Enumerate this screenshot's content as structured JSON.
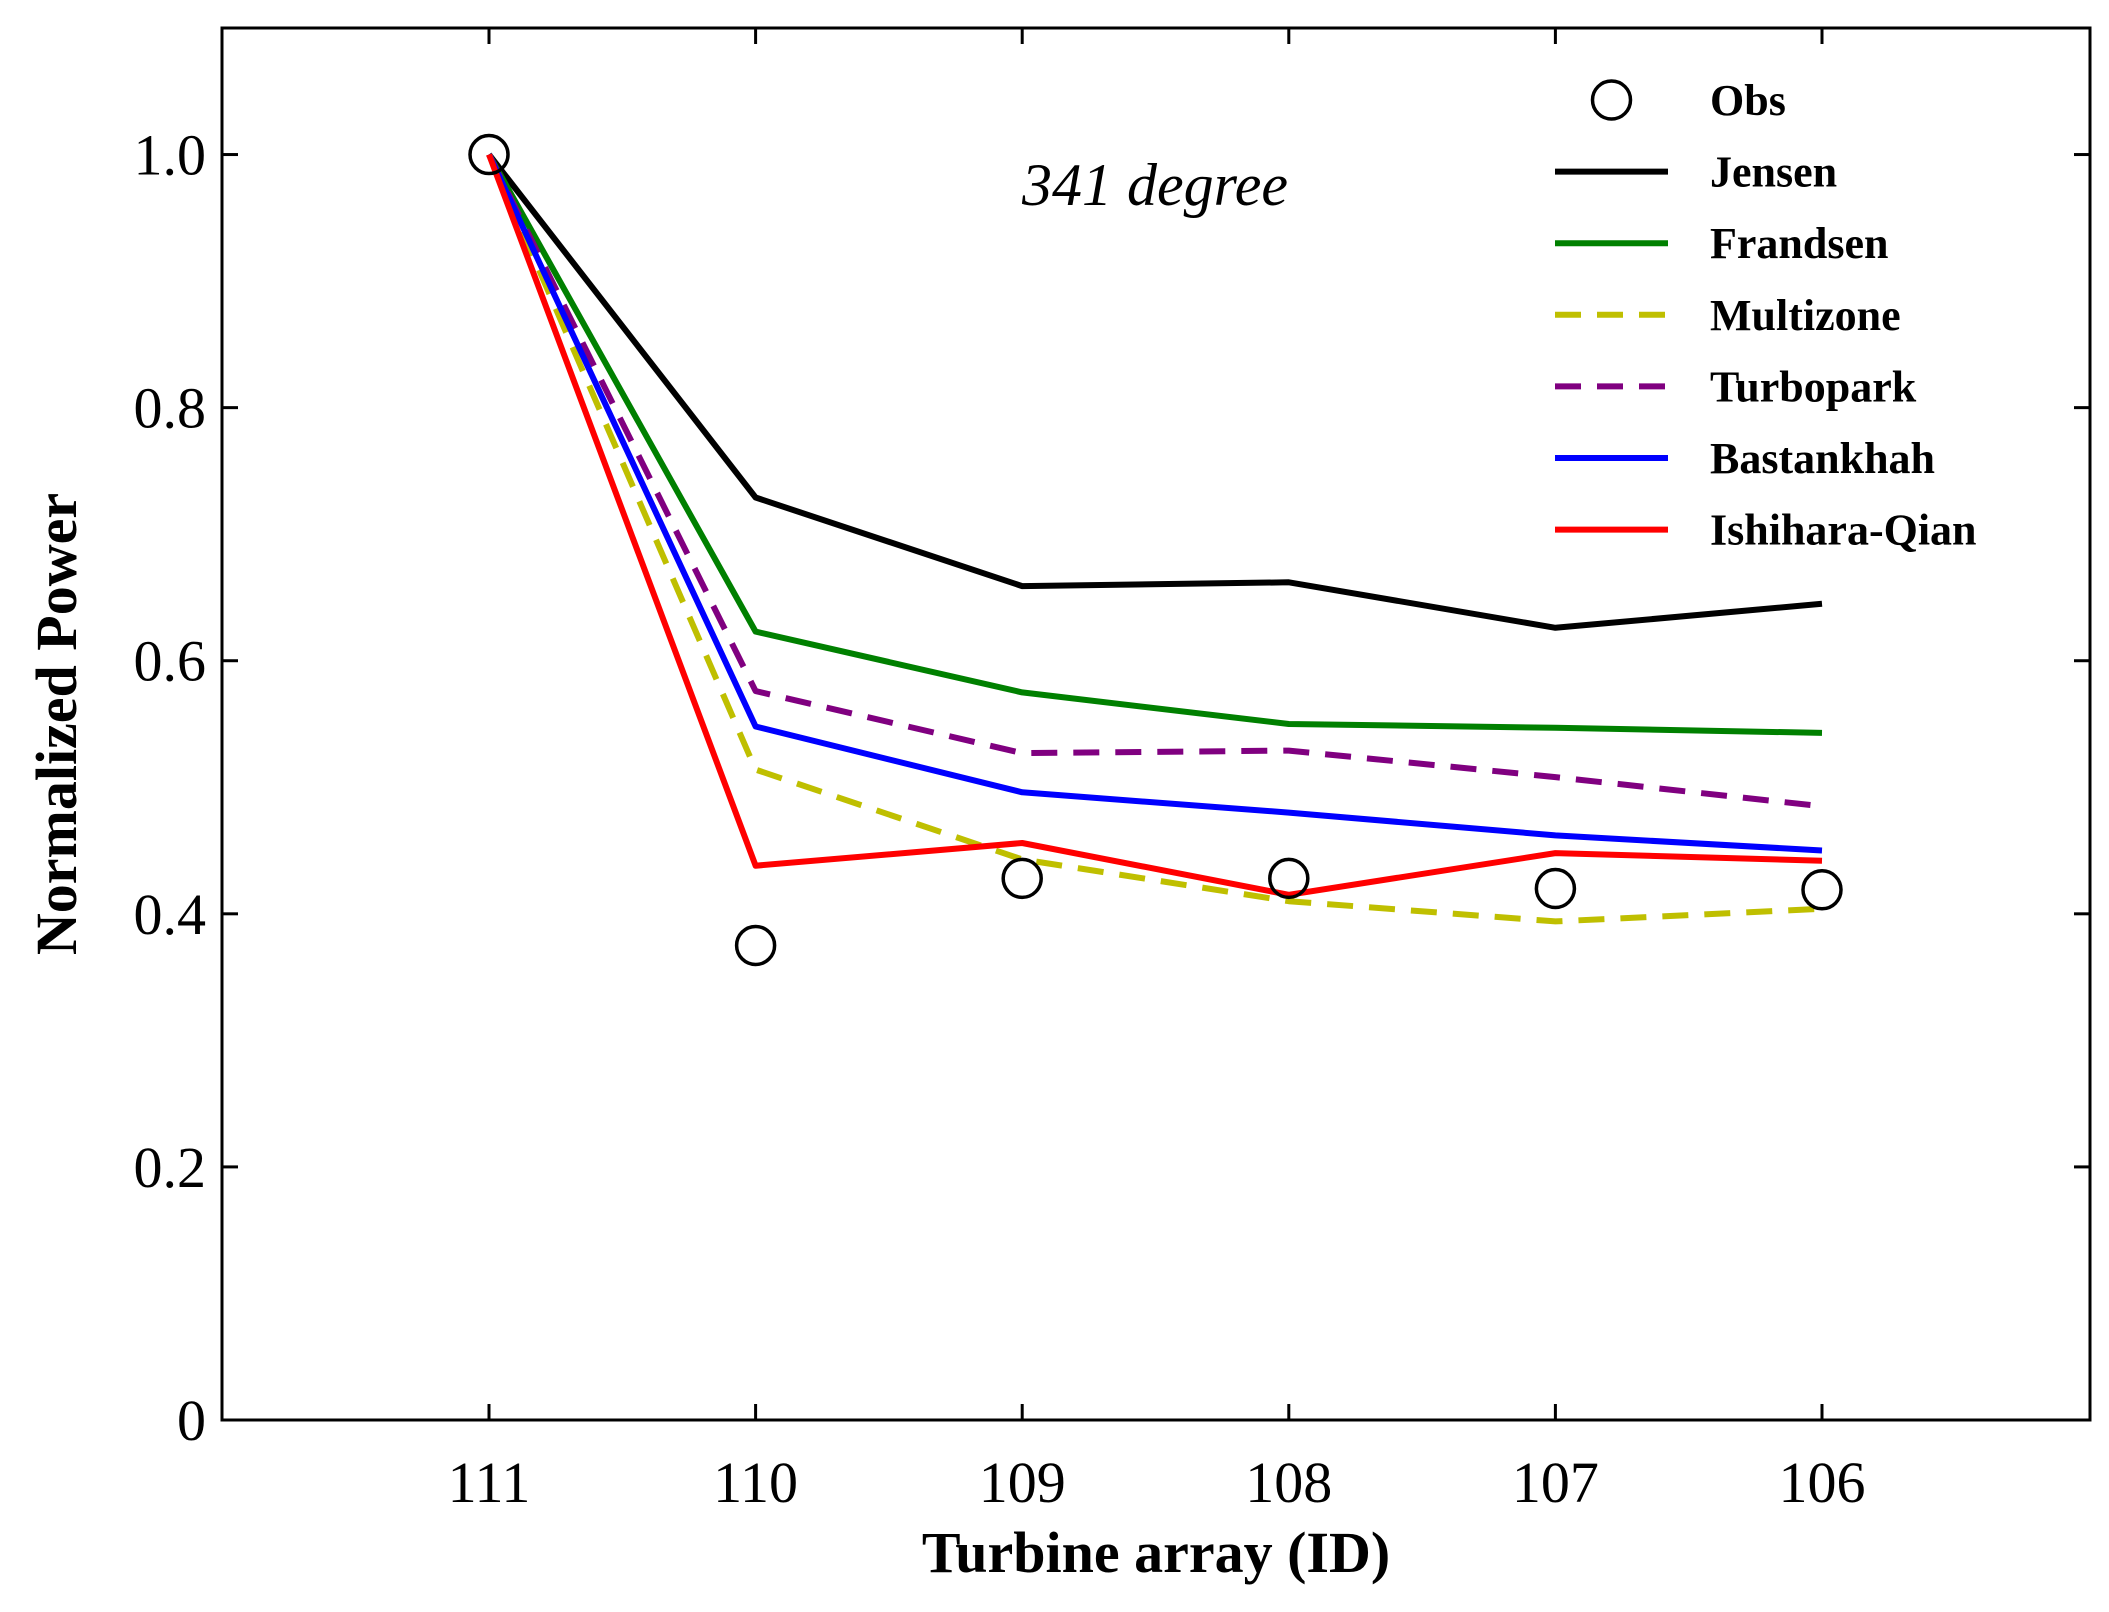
{
  "chart_data": {
    "type": "line",
    "xlabel": "Turbine array (ID)",
    "ylabel": "Normalized Power",
    "annotation": "341 degree",
    "categories": [
      "111",
      "110",
      "109",
      "108",
      "107",
      "106"
    ],
    "ylim": [
      0,
      1.1
    ],
    "yticks": [
      {
        "value": 0,
        "label": "0"
      },
      {
        "value": 0.2,
        "label": "0.2"
      },
      {
        "value": 0.4,
        "label": "0.4"
      },
      {
        "value": 0.6,
        "label": "0.6"
      },
      {
        "value": 0.8,
        "label": "0.8"
      },
      {
        "value": 1.0,
        "label": "1.0"
      }
    ],
    "grid": false,
    "legend_position": "top-right",
    "series": [
      {
        "name": "Obs",
        "style": "circle-marker",
        "color": "#000000",
        "values": [
          1.0,
          0.375,
          0.428,
          0.428,
          0.42,
          0.419
        ]
      },
      {
        "name": "Jensen",
        "style": "solid",
        "color": "#000000",
        "values": [
          1.0,
          0.729,
          0.659,
          0.662,
          0.626,
          0.645
        ]
      },
      {
        "name": "Frandsen",
        "style": "solid",
        "color": "#008000",
        "values": [
          1.0,
          0.623,
          0.575,
          0.55,
          0.547,
          0.543
        ]
      },
      {
        "name": "Multizone",
        "style": "dashed",
        "color": "#bfbf00",
        "values": [
          1.0,
          0.514,
          0.443,
          0.41,
          0.394,
          0.404
        ]
      },
      {
        "name": "Turbopark",
        "style": "dashed",
        "color": "#800080",
        "values": [
          1.0,
          0.576,
          0.527,
          0.529,
          0.508,
          0.485
        ]
      },
      {
        "name": "Bastankhah",
        "style": "solid",
        "color": "#0000ff",
        "values": [
          1.0,
          0.548,
          0.496,
          0.48,
          0.462,
          0.45
        ]
      },
      {
        "name": "Ishihara-Qian",
        "style": "solid",
        "color": "#ff0000",
        "values": [
          1.0,
          0.438,
          0.456,
          0.415,
          0.448,
          0.442
        ]
      }
    ]
  }
}
